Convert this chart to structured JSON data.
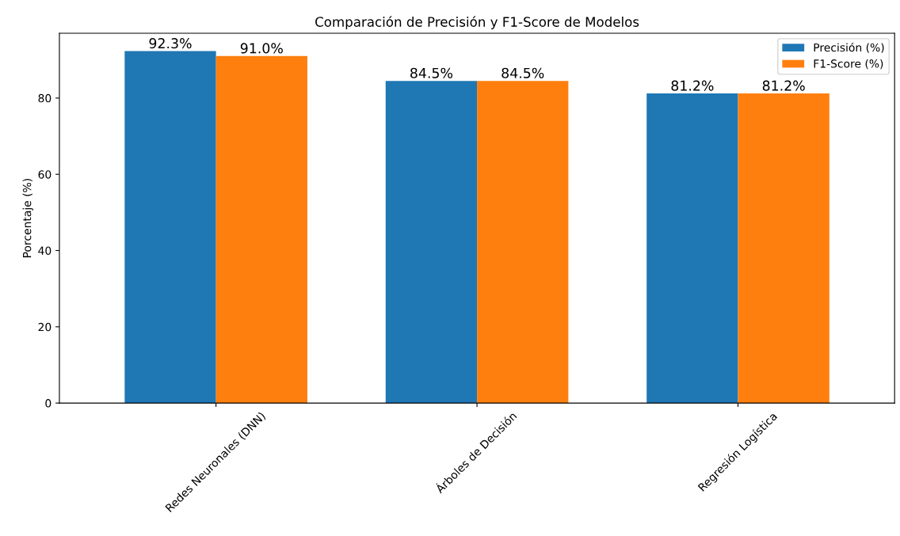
{
  "chart_data": {
    "type": "bar",
    "title": "Comparación de Precisión y F1-Score de Modelos",
    "ylabel": "Porcentaje (%)",
    "categories": [
      "Redes Neuronales (DNN)",
      "Árboles de Decisión",
      "Regresión Logística"
    ],
    "series": [
      {
        "name": "Precisión (%)",
        "color": "#1f77b4",
        "values": [
          92.3,
          84.5,
          81.2
        ],
        "value_labels": [
          "92.3%",
          "84.5%",
          "81.2%"
        ]
      },
      {
        "name": "F1-Score (%)",
        "color": "#ff7f0e",
        "values": [
          91.0,
          84.5,
          81.2
        ],
        "value_labels": [
          "91.0%",
          "84.5%",
          "81.2%"
        ]
      }
    ],
    "ylim": [
      0,
      97
    ],
    "yticks": [
      0,
      20,
      40,
      60,
      80
    ],
    "grid": false,
    "legend": "top right"
  }
}
